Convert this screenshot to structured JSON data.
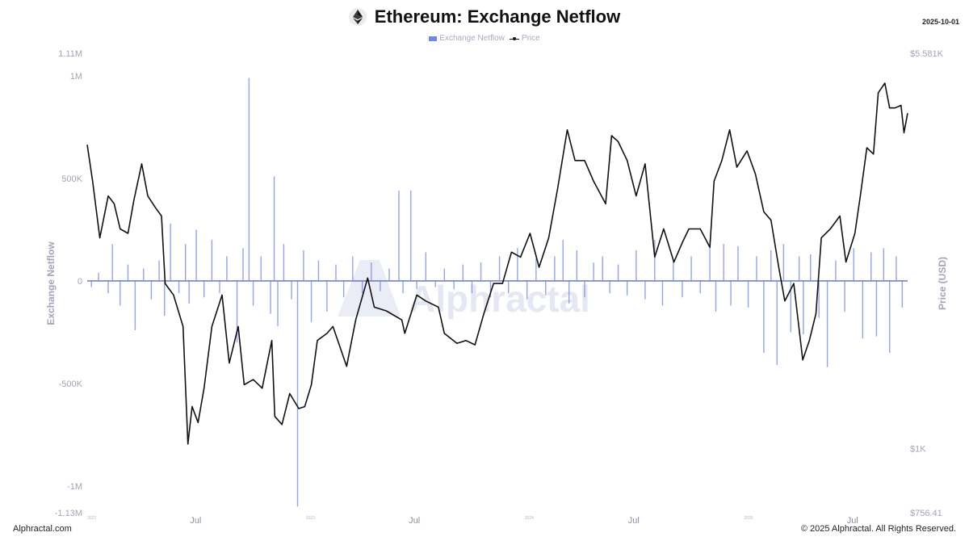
{
  "header": {
    "title": "Ethereum: Exchange Netflow",
    "date": "2025-10-01",
    "logo_icon": "ethereum-icon"
  },
  "legend": {
    "items": [
      {
        "label": "Exchange Netflow",
        "color": "#6f85e8",
        "icon": "bar-swatch"
      },
      {
        "label": "Price",
        "color": "#111111",
        "icon": "line-marker-swatch"
      }
    ]
  },
  "footer": {
    "left": "Alphractal.com",
    "right": "© 2025 Alphractal. All Rights Reserved."
  },
  "watermark": "Alphractal",
  "chart_data": {
    "type": "bar+line",
    "title": "Ethereum: Exchange Netflow",
    "left_axis": {
      "label": "Exchange Netflow",
      "range": [
        -1130000,
        1110000
      ],
      "ticks": [
        {
          "value": 1110000,
          "label": "1.11M"
        },
        {
          "value": 1000000,
          "label": "1M"
        },
        {
          "value": 500000,
          "label": "500K"
        },
        {
          "value": 0,
          "label": "0"
        },
        {
          "value": -500000,
          "label": "-500K"
        },
        {
          "value": -1000000,
          "label": "-1M"
        },
        {
          "value": -1130000,
          "label": "-1.13M"
        }
      ]
    },
    "right_axis": {
      "label": "Price (USD)",
      "scale": "log",
      "range": [
        756.41,
        5581
      ],
      "ticks": [
        {
          "value": 5581,
          "label": "$5.581K"
        },
        {
          "value": 1000,
          "label": "$1K"
        },
        {
          "value": 756.41,
          "label": "$756.41"
        }
      ]
    },
    "x_axis": {
      "start": "2022-01-01",
      "end": "2025-10-01",
      "ticks": [
        {
          "date": "2022-01-01",
          "label": "2022",
          "minor": true
        },
        {
          "date": "2022-07-01",
          "label": "Jul",
          "minor": false
        },
        {
          "date": "2023-01-01",
          "label": "2023",
          "minor": true
        },
        {
          "date": "2023-07-01",
          "label": "Jul",
          "minor": false
        },
        {
          "date": "2024-01-01",
          "label": "2024",
          "minor": true
        },
        {
          "date": "2024-07-01",
          "label": "Jul",
          "minor": false
        },
        {
          "date": "2025-01-01",
          "label": "2025",
          "minor": true
        },
        {
          "date": "2025-07-01",
          "label": "Jul",
          "minor": false
        }
      ]
    },
    "series": [
      {
        "name": "Exchange Netflow",
        "type": "bar",
        "color": "#6f85e8",
        "points": [
          [
            "2022-01-08",
            -30000
          ],
          [
            "2022-01-20",
            40000
          ],
          [
            "2022-02-05",
            -60000
          ],
          [
            "2022-02-12",
            180000
          ],
          [
            "2022-02-25",
            -120000
          ],
          [
            "2022-03-10",
            80000
          ],
          [
            "2022-03-22",
            -240000
          ],
          [
            "2022-04-05",
            60000
          ],
          [
            "2022-04-18",
            -90000
          ],
          [
            "2022-05-01",
            100000
          ],
          [
            "2022-05-10",
            -170000
          ],
          [
            "2022-05-20",
            280000
          ],
          [
            "2022-06-03",
            -60000
          ],
          [
            "2022-06-14",
            180000
          ],
          [
            "2022-06-20",
            -110000
          ],
          [
            "2022-07-02",
            250000
          ],
          [
            "2022-07-15",
            -80000
          ],
          [
            "2022-07-28",
            200000
          ],
          [
            "2022-08-10",
            -60000
          ],
          [
            "2022-08-22",
            120000
          ],
          [
            "2022-09-08",
            -300000
          ],
          [
            "2022-09-18",
            160000
          ],
          [
            "2022-09-28",
            990000
          ],
          [
            "2022-10-05",
            -120000
          ],
          [
            "2022-10-18",
            120000
          ],
          [
            "2022-11-03",
            -160000
          ],
          [
            "2022-11-09",
            510000
          ],
          [
            "2022-11-15",
            -220000
          ],
          [
            "2022-11-25",
            180000
          ],
          [
            "2022-12-08",
            -90000
          ],
          [
            "2022-12-18",
            -1100000
          ],
          [
            "2022-12-28",
            150000
          ],
          [
            "2023-01-10",
            -200000
          ],
          [
            "2023-01-22",
            100000
          ],
          [
            "2023-02-05",
            -150000
          ],
          [
            "2023-02-20",
            80000
          ],
          [
            "2023-03-05",
            -80000
          ],
          [
            "2023-03-20",
            120000
          ],
          [
            "2023-04-05",
            -60000
          ],
          [
            "2023-04-20",
            90000
          ],
          [
            "2023-05-05",
            -50000
          ],
          [
            "2023-05-20",
            60000
          ],
          [
            "2023-06-05",
            440000
          ],
          [
            "2023-06-12",
            -60000
          ],
          [
            "2023-06-25",
            440000
          ],
          [
            "2023-07-05",
            -40000
          ],
          [
            "2023-07-20",
            140000
          ],
          [
            "2023-08-05",
            -30000
          ],
          [
            "2023-08-20",
            60000
          ],
          [
            "2023-09-05",
            -40000
          ],
          [
            "2023-09-20",
            80000
          ],
          [
            "2023-10-05",
            -60000
          ],
          [
            "2023-10-20",
            90000
          ],
          [
            "2023-11-05",
            -80000
          ],
          [
            "2023-11-20",
            120000
          ],
          [
            "2023-12-05",
            -60000
          ],
          [
            "2023-12-20",
            160000
          ],
          [
            "2024-01-05",
            -90000
          ],
          [
            "2024-01-20",
            110000
          ],
          [
            "2024-02-05",
            -70000
          ],
          [
            "2024-02-20",
            120000
          ],
          [
            "2024-03-05",
            200000
          ],
          [
            "2024-03-15",
            -110000
          ],
          [
            "2024-03-28",
            150000
          ],
          [
            "2024-04-10",
            -80000
          ],
          [
            "2024-04-25",
            90000
          ],
          [
            "2024-05-10",
            120000
          ],
          [
            "2024-05-22",
            -60000
          ],
          [
            "2024-06-05",
            80000
          ],
          [
            "2024-06-20",
            -70000
          ],
          [
            "2024-07-05",
            150000
          ],
          [
            "2024-07-20",
            -90000
          ],
          [
            "2024-08-05",
            200000
          ],
          [
            "2024-08-18",
            -120000
          ],
          [
            "2024-09-05",
            100000
          ],
          [
            "2024-09-20",
            -80000
          ],
          [
            "2024-10-05",
            120000
          ],
          [
            "2024-10-20",
            -60000
          ],
          [
            "2024-11-05",
            200000
          ],
          [
            "2024-11-15",
            -150000
          ],
          [
            "2024-11-28",
            180000
          ],
          [
            "2024-12-10",
            -120000
          ],
          [
            "2024-12-22",
            170000
          ],
          [
            "2025-01-08",
            -130000
          ],
          [
            "2025-01-22",
            120000
          ],
          [
            "2025-02-03",
            -350000
          ],
          [
            "2025-02-15",
            150000
          ],
          [
            "2025-02-25",
            -410000
          ],
          [
            "2025-03-08",
            180000
          ],
          [
            "2025-03-20",
            -250000
          ],
          [
            "2025-04-03",
            120000
          ],
          [
            "2025-04-10",
            -260000
          ],
          [
            "2025-04-22",
            130000
          ],
          [
            "2025-05-06",
            -180000
          ],
          [
            "2025-05-20",
            -420000
          ],
          [
            "2025-06-03",
            100000
          ],
          [
            "2025-06-18",
            -150000
          ],
          [
            "2025-07-03",
            160000
          ],
          [
            "2025-07-18",
            -280000
          ],
          [
            "2025-08-01",
            140000
          ],
          [
            "2025-08-10",
            -270000
          ],
          [
            "2025-08-22",
            160000
          ],
          [
            "2025-09-01",
            -350000
          ],
          [
            "2025-09-12",
            120000
          ],
          [
            "2025-09-22",
            -130000
          ]
        ]
      },
      {
        "name": "Price",
        "type": "line",
        "color": "#111111",
        "points": [
          [
            "2022-01-01",
            3750
          ],
          [
            "2022-01-10",
            3200
          ],
          [
            "2022-01-22",
            2500
          ],
          [
            "2022-02-05",
            3000
          ],
          [
            "2022-02-15",
            2900
          ],
          [
            "2022-02-25",
            2600
          ],
          [
            "2022-03-10",
            2550
          ],
          [
            "2022-03-20",
            2950
          ],
          [
            "2022-04-02",
            3450
          ],
          [
            "2022-04-12",
            3000
          ],
          [
            "2022-04-25",
            2850
          ],
          [
            "2022-05-05",
            2750
          ],
          [
            "2022-05-11",
            2050
          ],
          [
            "2022-05-25",
            1950
          ],
          [
            "2022-06-10",
            1700
          ],
          [
            "2022-06-18",
            1020
          ],
          [
            "2022-06-25",
            1200
          ],
          [
            "2022-07-05",
            1120
          ],
          [
            "2022-07-15",
            1300
          ],
          [
            "2022-07-28",
            1700
          ],
          [
            "2022-08-14",
            1950
          ],
          [
            "2022-08-26",
            1450
          ],
          [
            "2022-09-10",
            1700
          ],
          [
            "2022-09-20",
            1320
          ],
          [
            "2022-10-05",
            1350
          ],
          [
            "2022-10-20",
            1300
          ],
          [
            "2022-11-05",
            1600
          ],
          [
            "2022-11-10",
            1150
          ],
          [
            "2022-11-22",
            1110
          ],
          [
            "2022-12-05",
            1270
          ],
          [
            "2022-12-20",
            1190
          ],
          [
            "2022-12-30",
            1200
          ],
          [
            "2023-01-10",
            1320
          ],
          [
            "2023-01-20",
            1600
          ],
          [
            "2023-02-05",
            1650
          ],
          [
            "2023-02-15",
            1700
          ],
          [
            "2023-03-10",
            1430
          ],
          [
            "2023-03-25",
            1750
          ],
          [
            "2023-04-14",
            2100
          ],
          [
            "2023-04-25",
            1850
          ],
          [
            "2023-05-15",
            1820
          ],
          [
            "2023-06-10",
            1750
          ],
          [
            "2023-06-15",
            1650
          ],
          [
            "2023-07-05",
            1950
          ],
          [
            "2023-07-20",
            1900
          ],
          [
            "2023-08-10",
            1850
          ],
          [
            "2023-08-20",
            1650
          ],
          [
            "2023-09-10",
            1580
          ],
          [
            "2023-09-25",
            1600
          ],
          [
            "2023-10-10",
            1570
          ],
          [
            "2023-10-25",
            1800
          ],
          [
            "2023-11-10",
            2050
          ],
          [
            "2023-11-25",
            2050
          ],
          [
            "2023-12-10",
            2350
          ],
          [
            "2023-12-25",
            2300
          ],
          [
            "2024-01-10",
            2550
          ],
          [
            "2024-01-25",
            2200
          ],
          [
            "2024-02-10",
            2500
          ],
          [
            "2024-02-25",
            3100
          ],
          [
            "2024-03-12",
            4000
          ],
          [
            "2024-03-25",
            3500
          ],
          [
            "2024-04-10",
            3500
          ],
          [
            "2024-04-25",
            3200
          ],
          [
            "2024-05-15",
            2900
          ],
          [
            "2024-05-25",
            3900
          ],
          [
            "2024-06-05",
            3800
          ],
          [
            "2024-06-20",
            3500
          ],
          [
            "2024-07-05",
            3000
          ],
          [
            "2024-07-20",
            3450
          ],
          [
            "2024-08-05",
            2300
          ],
          [
            "2024-08-20",
            2600
          ],
          [
            "2024-09-06",
            2250
          ],
          [
            "2024-09-20",
            2450
          ],
          [
            "2024-10-01",
            2600
          ],
          [
            "2024-10-20",
            2600
          ],
          [
            "2024-11-05",
            2400
          ],
          [
            "2024-11-12",
            3200
          ],
          [
            "2024-11-25",
            3500
          ],
          [
            "2024-12-08",
            4000
          ],
          [
            "2024-12-20",
            3400
          ],
          [
            "2025-01-06",
            3650
          ],
          [
            "2025-01-20",
            3300
          ],
          [
            "2025-02-03",
            2800
          ],
          [
            "2025-02-15",
            2700
          ],
          [
            "2025-02-28",
            2200
          ],
          [
            "2025-03-10",
            1900
          ],
          [
            "2025-03-25",
            2050
          ],
          [
            "2025-04-09",
            1470
          ],
          [
            "2025-04-20",
            1600
          ],
          [
            "2025-05-01",
            1800
          ],
          [
            "2025-05-10",
            2500
          ],
          [
            "2025-05-25",
            2600
          ],
          [
            "2025-06-10",
            2750
          ],
          [
            "2025-06-20",
            2250
          ],
          [
            "2025-07-05",
            2550
          ],
          [
            "2025-07-14",
            3000
          ],
          [
            "2025-07-25",
            3700
          ],
          [
            "2025-08-05",
            3600
          ],
          [
            "2025-08-13",
            4700
          ],
          [
            "2025-08-24",
            4900
          ],
          [
            "2025-09-01",
            4400
          ],
          [
            "2025-09-10",
            4400
          ],
          [
            "2025-09-20",
            4450
          ],
          [
            "2025-09-25",
            3950
          ],
          [
            "2025-10-01",
            4300
          ]
        ]
      }
    ]
  }
}
